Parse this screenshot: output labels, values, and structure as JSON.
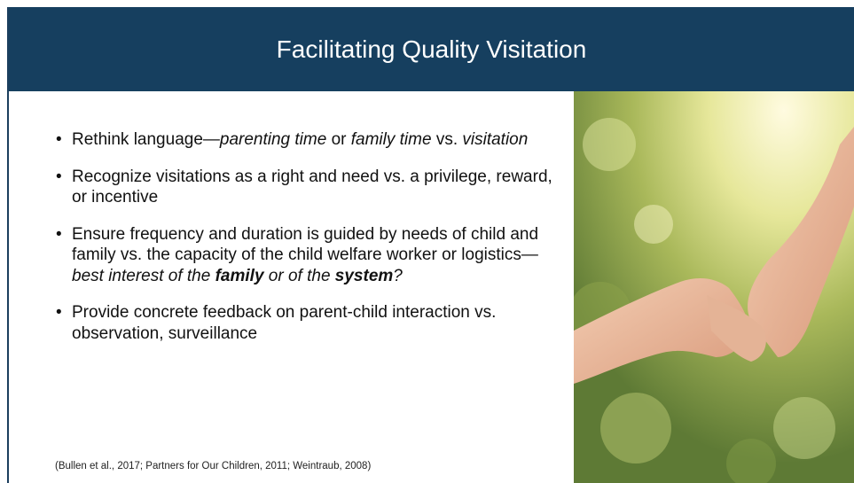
{
  "header": {
    "title": "Facilitating Quality Visitation"
  },
  "bullets": [
    {
      "runs": [
        {
          "text": "Rethink language—"
        },
        {
          "text": "parenting time",
          "italic": true
        },
        {
          "text": " or "
        },
        {
          "text": "family time",
          "italic": true
        },
        {
          "text": " vs. "
        },
        {
          "text": "visitation",
          "italic": true
        }
      ]
    },
    {
      "runs": [
        {
          "text": "Recognize visitations as a right and need vs. a privilege, reward, or incentive"
        }
      ]
    },
    {
      "runs": [
        {
          "text": "Ensure frequency and duration is guided by needs of child and family vs. the capacity of the child welfare worker or logistics—"
        },
        {
          "text": "best interest of the ",
          "italic": true
        },
        {
          "text": "family",
          "italic": true,
          "bold": true
        },
        {
          "text": " or of the ",
          "italic": true
        },
        {
          "text": "system",
          "italic": true,
          "bold": true
        },
        {
          "text": "?",
          "italic": true
        }
      ]
    },
    {
      "runs": [
        {
          "text": "Provide concrete feedback on parent-child interaction vs. observation, surveillance"
        }
      ]
    }
  ],
  "citation": "(Bullen et al., 2017; Partners for Our Children, 2011; Weintraub, 2008)"
}
